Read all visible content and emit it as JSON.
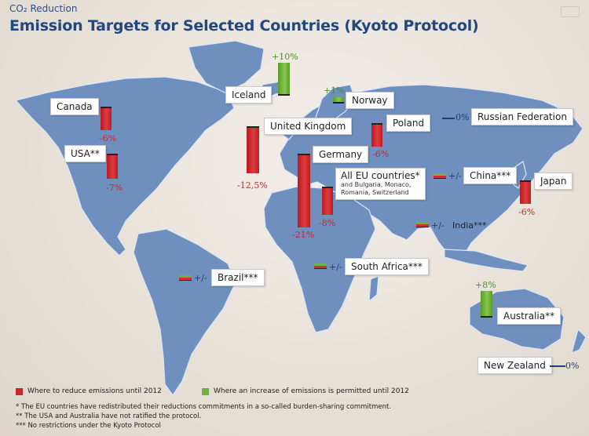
{
  "header": {
    "subtitle": "CO₂ Reduction",
    "title": "Emission Targets for Selected Countries (Kyoto Protocol)"
  },
  "countries": {
    "iceland": {
      "name": "Iceland",
      "value": "+10%"
    },
    "norway": {
      "name": "Norway",
      "value": "+1%"
    },
    "canada": {
      "name": "Canada",
      "value": "-6%"
    },
    "usa": {
      "name": "USA**",
      "value": "-7%"
    },
    "uk": {
      "name": "United Kingdom",
      "value": "-12,5%"
    },
    "germany": {
      "name": "Germany",
      "value": "-21%"
    },
    "eu": {
      "name": "All EU countries*",
      "sub": "and Bulgaria, Monaco, Romania, Switzerland",
      "value": "-8%"
    },
    "poland": {
      "name": "Poland",
      "value": "-6%"
    },
    "russia": {
      "name": "Russian Federation",
      "value": "0%"
    },
    "china": {
      "name": "China***",
      "value": "+/-"
    },
    "japan": {
      "name": "Japan",
      "value": "-6%"
    },
    "india": {
      "name": "India***",
      "value": "+/-"
    },
    "brazil": {
      "name": "Brazil***",
      "value": "+/-"
    },
    "south_africa": {
      "name": "South Africa***",
      "value": "+/-"
    },
    "australia": {
      "name": "Australia**",
      "value": "+8%"
    },
    "new_zealand": {
      "name": "New Zealand",
      "value": "0%"
    }
  },
  "legend": {
    "reduce": "Where to reduce emissions until 2012",
    "increase": "Where an increase of emissions is permitted until 2012",
    "reduce_color": "#c8262b",
    "increase_color": "#6db33f"
  },
  "notes": [
    "* The EU countries have redistributed their reductions commitments in a so-called burden-sharing commitment.",
    "** The USA and Australia have not ratified the protocol.",
    "*** No restrictions under the Kyoto Protocol"
  ],
  "colors": {
    "title": "#23477f",
    "land": "#6f90bf",
    "reduce": "#c8262b",
    "increase": "#6db33f",
    "neutral": "#1d3f75"
  }
}
